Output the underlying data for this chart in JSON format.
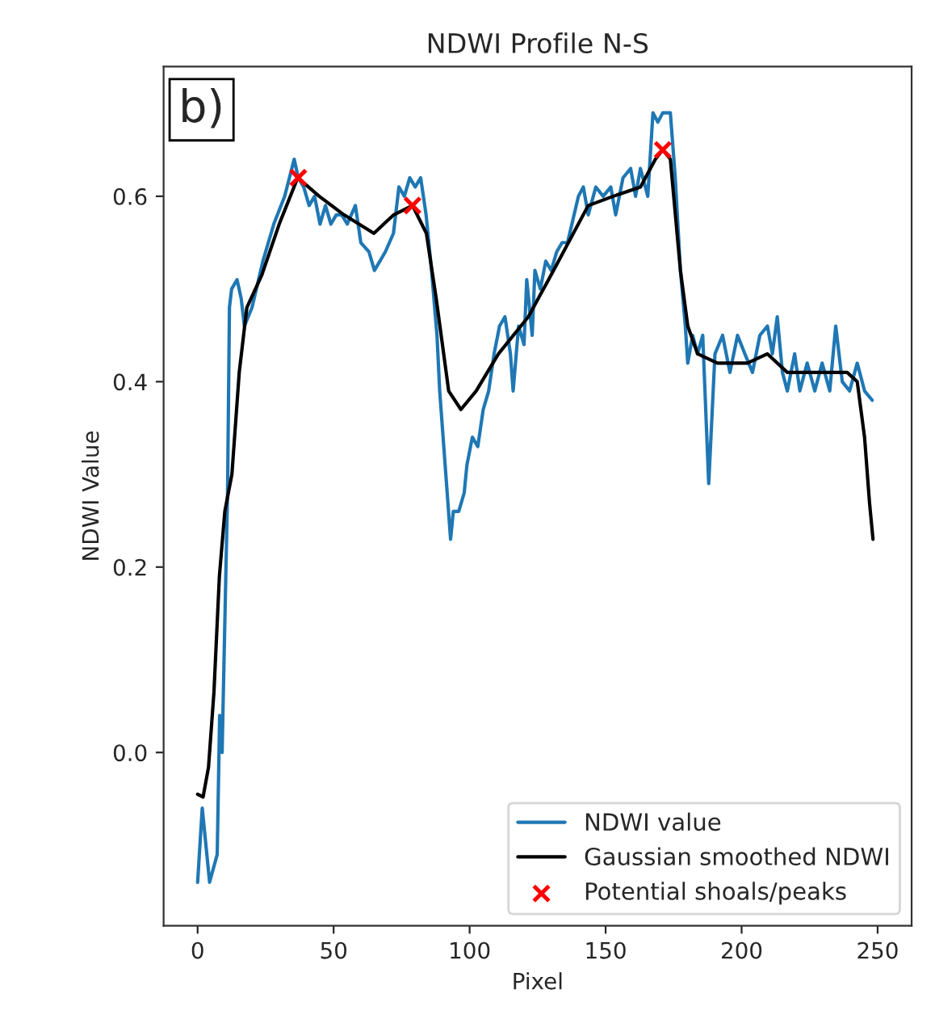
{
  "chart_data": {
    "type": "line",
    "title": "NDWI Profile N-S",
    "xlabel": "Pixel",
    "ylabel": "NDWI Value",
    "annotations": [
      "b)"
    ],
    "xlim": [
      -12.5,
      262.5
    ],
    "xticks": [
      0,
      50,
      100,
      150,
      200,
      250
    ],
    "ylim": [
      -0.187,
      0.74
    ],
    "yticks": [
      {
        "value": 0,
        "label": "0.0"
      },
      0.2,
      0.4,
      0.6
    ],
    "grid": false,
    "legend": "bottom right",
    "series": [
      {
        "name": "NDWI value",
        "color": "#1f77b4",
        "x": [
          0,
          1.7,
          4.4,
          7.2,
          8.1,
          9,
          11,
          11.7,
          12.5,
          14.5,
          16,
          17.2,
          20,
          24,
          28,
          32,
          35.5,
          37,
          39,
          41,
          43,
          45,
          47,
          49,
          51,
          53,
          55,
          58,
          60,
          63,
          65,
          67,
          69,
          72,
          74,
          76,
          78,
          80,
          82,
          84,
          86,
          88,
          89,
          91,
          92,
          93,
          94,
          96,
          98,
          99,
          101,
          103,
          105,
          107,
          109,
          111,
          113,
          115,
          116,
          118,
          120,
          121,
          123,
          124,
          126,
          128,
          130,
          132,
          134,
          136,
          140,
          141.8,
          143.6,
          146.4,
          149.1,
          151.9,
          153.7,
          156.4,
          159.2,
          161,
          162.8,
          165.5,
          167.4,
          169.2,
          171,
          173.8,
          175.6,
          177.5,
          179.3,
          180.2,
          182,
          183.8,
          185.7,
          187.9,
          190.2,
          193,
          195.7,
          198.5,
          201.2,
          204,
          206.7,
          209.5,
          211.3,
          213.1,
          215,
          216.8,
          219.5,
          221.4,
          224.1,
          226.9,
          229.6,
          232.4,
          234.6,
          237,
          239.7,
          242.5,
          245.2,
          248
        ],
        "values": [
          -0.14,
          -0.06,
          -0.14,
          -0.11,
          0.04,
          0.0,
          0.28,
          0.48,
          0.5,
          0.51,
          0.49,
          0.46,
          0.48,
          0.53,
          0.57,
          0.6,
          0.64,
          0.62,
          0.61,
          0.59,
          0.6,
          0.57,
          0.59,
          0.57,
          0.58,
          0.58,
          0.57,
          0.59,
          0.55,
          0.54,
          0.52,
          0.53,
          0.54,
          0.56,
          0.61,
          0.6,
          0.62,
          0.61,
          0.62,
          0.58,
          0.52,
          0.45,
          0.39,
          0.31,
          0.27,
          0.23,
          0.26,
          0.26,
          0.28,
          0.31,
          0.34,
          0.33,
          0.37,
          0.39,
          0.43,
          0.46,
          0.47,
          0.43,
          0.39,
          0.46,
          0.44,
          0.51,
          0.45,
          0.52,
          0.5,
          0.53,
          0.52,
          0.54,
          0.55,
          0.55,
          0.6,
          0.61,
          0.58,
          0.61,
          0.6,
          0.61,
          0.58,
          0.62,
          0.63,
          0.6,
          0.63,
          0.6,
          0.69,
          0.68,
          0.69,
          0.69,
          0.62,
          0.52,
          0.46,
          0.42,
          0.45,
          0.43,
          0.45,
          0.29,
          0.43,
          0.45,
          0.41,
          0.45,
          0.43,
          0.41,
          0.45,
          0.46,
          0.43,
          0.47,
          0.41,
          0.39,
          0.43,
          0.39,
          0.42,
          0.39,
          0.42,
          0.39,
          0.46,
          0.4,
          0.39,
          0.42,
          0.39,
          0.38
        ]
      },
      {
        "name": "Gaussian smoothed NDWI",
        "color": "#000000",
        "x": [
          0,
          2,
          4,
          6,
          8,
          10,
          12.6,
          15.3,
          18.1,
          23.6,
          30,
          36.8,
          44.7,
          53.8,
          64.8,
          72.1,
          79,
          84.1,
          87.7,
          92.3,
          96.8,
          102.4,
          110.6,
          121.6,
          125.3,
          129,
          134.5,
          143.6,
          152.8,
          162.8,
          168.3,
          171,
          173.8,
          177.5,
          180.2,
          183.8,
          191.1,
          202.1,
          209.5,
          216.8,
          227.8,
          238.8,
          242.5,
          245.2,
          247,
          248.3
        ],
        "values": [
          -0.045,
          -0.048,
          -0.016,
          0.065,
          0.19,
          0.26,
          0.3,
          0.41,
          0.48,
          0.515,
          0.57,
          0.62,
          0.6,
          0.58,
          0.56,
          0.58,
          0.59,
          0.56,
          0.49,
          0.39,
          0.37,
          0.39,
          0.43,
          0.47,
          0.49,
          0.51,
          0.54,
          0.59,
          0.6,
          0.61,
          0.64,
          0.65,
          0.64,
          0.52,
          0.46,
          0.43,
          0.42,
          0.42,
          0.43,
          0.41,
          0.41,
          0.41,
          0.4,
          0.34,
          0.27,
          0.23
        ]
      },
      {
        "name": "Potential shoals/peaks",
        "type": "scatter",
        "color": "#ff0000",
        "marker": "cross",
        "x": [
          37,
          79,
          171
        ],
        "values": [
          0.62,
          0.59,
          0.65
        ]
      }
    ]
  }
}
